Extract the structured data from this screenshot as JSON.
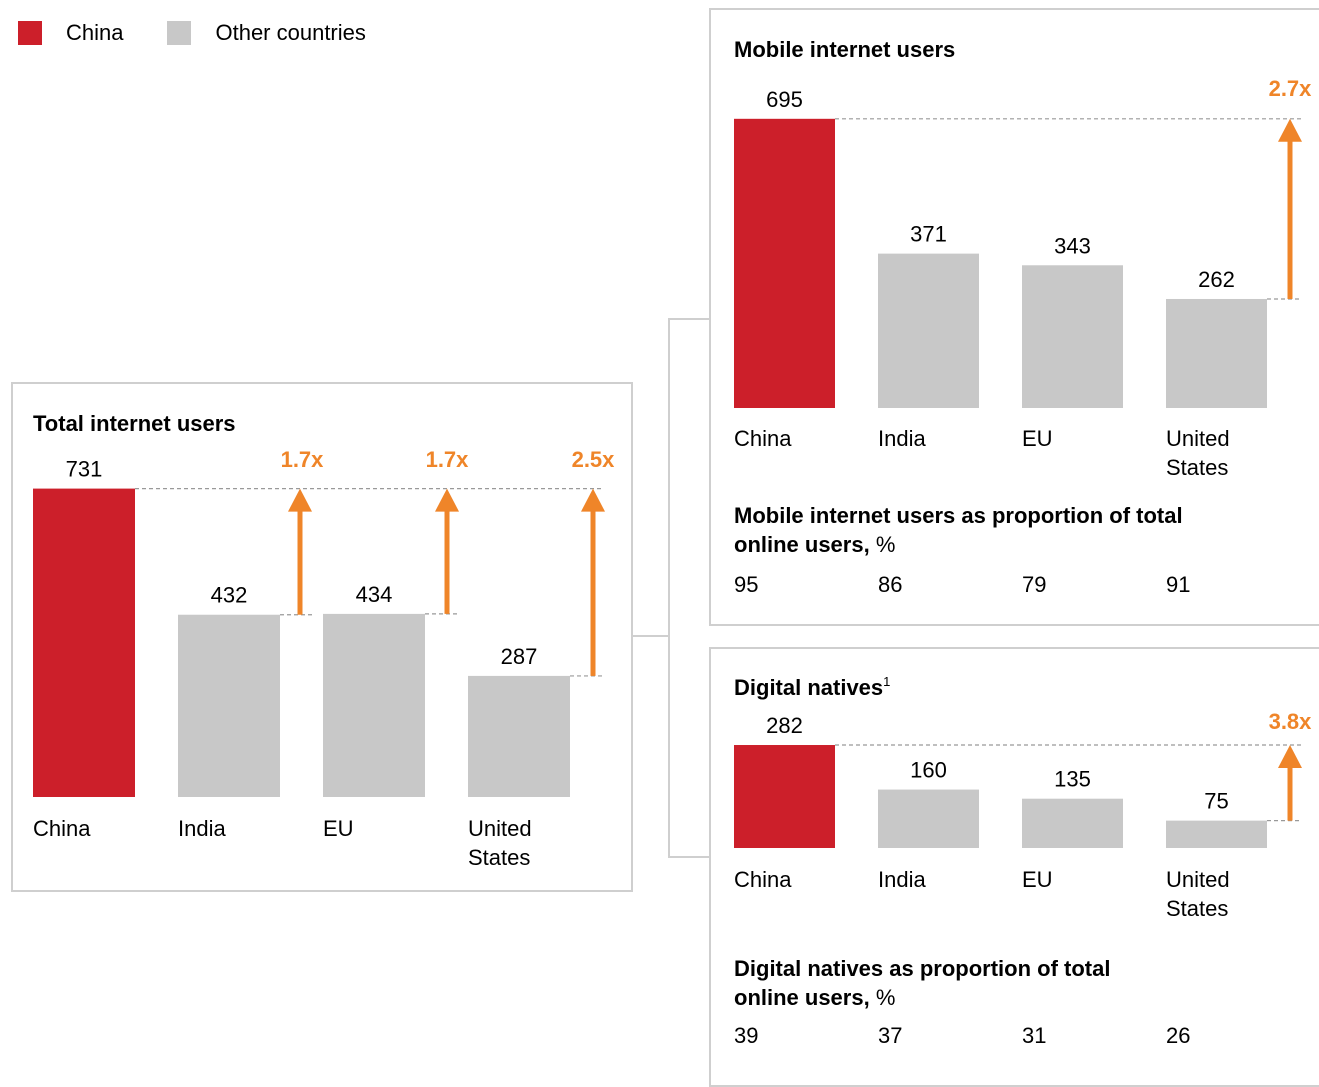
{
  "legend": {
    "items": [
      {
        "label": "China",
        "color": "#cc1f2a"
      },
      {
        "label": "Other countries",
        "color": "#c8c8c8"
      }
    ]
  },
  "colors": {
    "china": "#cc1f2a",
    "other": "#c8c8c8",
    "arrow": "#ef8529",
    "border": "#cfcfcf"
  },
  "chart_data": [
    {
      "type": "bar",
      "title": "Total internet users",
      "categories": [
        "China",
        "India",
        "EU",
        "United States"
      ],
      "values": [
        731,
        432,
        434,
        287
      ],
      "ratios": [
        "1.7x",
        "1.7x",
        "2.5x"
      ]
    },
    {
      "type": "bar",
      "title": "Mobile internet users",
      "categories": [
        "China",
        "India",
        "EU",
        "United States"
      ],
      "values": [
        695,
        371,
        343,
        262
      ],
      "ratios": [
        "2.7x"
      ],
      "proportion": {
        "title": "Mobile internet users as proportion of total online users,",
        "unit": "%",
        "values": [
          95,
          86,
          79,
          91
        ]
      }
    },
    {
      "type": "bar",
      "title": "Digital natives",
      "title_sup": "1",
      "categories": [
        "China",
        "India",
        "EU",
        "United States"
      ],
      "values": [
        282,
        160,
        135,
        75
      ],
      "ratios": [
        "3.8x"
      ],
      "proportion": {
        "title": "Digital natives as proportion of total online users,",
        "unit": "%",
        "values": [
          39,
          37,
          31,
          26
        ]
      }
    }
  ]
}
